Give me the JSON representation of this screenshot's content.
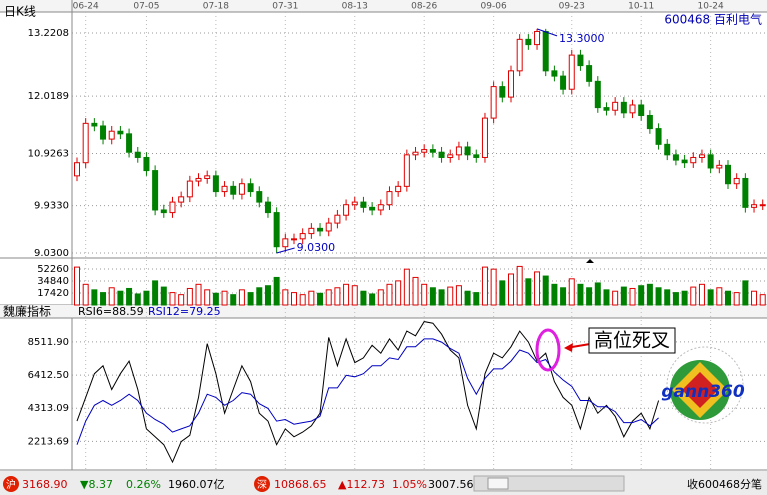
{
  "chart_data": {
    "type": "candlestick",
    "title": "日K线",
    "stock": "600468 百利电气",
    "xticks": [
      {
        "value": 1,
        "label": "06-24"
      },
      {
        "value": 8,
        "label": "07-05"
      },
      {
        "value": 16,
        "label": "07-18"
      },
      {
        "value": 24,
        "label": "07-31"
      },
      {
        "value": 32,
        "label": "08-13"
      },
      {
        "value": 40,
        "label": "08-26"
      },
      {
        "value": 48,
        "label": "09-06"
      },
      {
        "value": 57,
        "label": "09-23"
      },
      {
        "value": 65,
        "label": "10-11"
      },
      {
        "value": 73,
        "label": "10-24"
      }
    ],
    "up_color": "#e00000",
    "down_color": "#008000",
    "price": {
      "ylim": [
        8.935,
        13.621
      ],
      "yticks": [
        13.2208,
        12.0189,
        10.9263,
        {
          "value": 9.933,
          "label": "9.9330"
        },
        {
          "value": 9.03,
          "label": "9.0300"
        }
      ],
      "open": [
        10.5,
        10.75,
        11.5,
        11.45,
        11.2,
        11.35,
        11.3,
        10.95,
        10.85,
        10.6,
        9.85,
        9.8,
        10.0,
        10.1,
        10.4,
        10.45,
        10.5,
        10.2,
        10.3,
        10.15,
        10.35,
        10.2,
        10.0,
        9.8,
        9.15,
        9.3,
        9.3,
        9.4,
        9.5,
        9.45,
        9.6,
        9.75,
        9.95,
        10.0,
        9.9,
        9.85,
        9.95,
        10.2,
        10.3,
        10.9,
        10.95,
        11.0,
        10.95,
        10.85,
        10.9,
        11.05,
        10.9,
        10.85,
        11.6,
        12.2,
        12.0,
        12.5,
        13.1,
        13.0,
        13.25,
        12.5,
        12.4,
        12.15,
        12.8,
        12.6,
        12.3,
        11.8,
        11.75,
        11.9,
        11.7,
        11.85,
        11.65,
        11.4,
        11.1,
        10.9,
        10.8,
        10.75,
        10.85,
        10.9,
        10.65,
        10.7,
        10.35,
        10.45,
        9.9,
        9.95
      ],
      "high": [
        10.85,
        11.6,
        11.6,
        11.55,
        11.45,
        11.45,
        11.4,
        11.05,
        10.95,
        10.7,
        9.95,
        10.1,
        10.2,
        10.5,
        10.55,
        10.6,
        10.6,
        10.4,
        10.4,
        10.45,
        10.45,
        10.3,
        10.1,
        9.9,
        9.4,
        9.4,
        9.5,
        9.6,
        9.6,
        9.7,
        9.85,
        10.05,
        10.1,
        10.1,
        10.0,
        10.05,
        10.3,
        10.4,
        11.0,
        11.05,
        11.1,
        11.1,
        11.05,
        11.0,
        11.15,
        11.15,
        11.0,
        11.7,
        12.3,
        12.3,
        12.6,
        13.2,
        13.2,
        13.3,
        13.3,
        12.6,
        12.5,
        12.9,
        12.9,
        12.7,
        12.4,
        11.9,
        12.0,
        12.0,
        11.95,
        11.95,
        11.75,
        11.5,
        11.2,
        11.0,
        10.9,
        10.95,
        11.0,
        11.0,
        10.8,
        10.8,
        10.55,
        10.55,
        10.05,
        10.05
      ],
      "low": [
        10.4,
        10.65,
        11.35,
        11.1,
        11.1,
        11.2,
        10.85,
        10.75,
        10.5,
        9.75,
        9.7,
        9.7,
        9.9,
        10.0,
        10.3,
        10.35,
        10.1,
        10.1,
        10.05,
        10.05,
        10.1,
        9.9,
        9.7,
        9.03,
        9.05,
        9.2,
        9.2,
        9.3,
        9.35,
        9.35,
        9.5,
        9.65,
        9.85,
        9.8,
        9.75,
        9.75,
        9.85,
        10.1,
        10.2,
        10.8,
        10.85,
        10.85,
        10.75,
        10.75,
        10.8,
        10.8,
        10.75,
        10.75,
        11.5,
        11.9,
        11.9,
        12.4,
        12.9,
        12.9,
        12.4,
        12.3,
        12.05,
        12.05,
        12.5,
        12.2,
        11.7,
        11.65,
        11.65,
        11.6,
        11.6,
        11.55,
        11.3,
        11.0,
        10.8,
        10.7,
        10.65,
        10.65,
        10.75,
        10.55,
        10.55,
        10.25,
        10.25,
        9.8,
        9.8,
        9.85
      ],
      "close": [
        10.75,
        11.5,
        11.45,
        11.2,
        11.35,
        11.3,
        10.95,
        10.85,
        10.6,
        9.85,
        9.8,
        10.0,
        10.1,
        10.4,
        10.45,
        10.5,
        10.2,
        10.3,
        10.15,
        10.35,
        10.2,
        10.0,
        9.8,
        9.15,
        9.3,
        9.3,
        9.4,
        9.5,
        9.45,
        9.6,
        9.75,
        9.95,
        10.0,
        9.9,
        9.85,
        9.95,
        10.2,
        10.3,
        10.9,
        10.95,
        11.0,
        10.95,
        10.85,
        10.9,
        11.05,
        10.9,
        10.85,
        11.6,
        12.2,
        12.0,
        12.5,
        13.1,
        13.0,
        13.25,
        12.5,
        12.4,
        12.15,
        12.8,
        12.6,
        12.3,
        11.8,
        11.75,
        11.9,
        11.7,
        11.85,
        11.65,
        11.4,
        11.1,
        10.9,
        10.8,
        10.75,
        10.85,
        10.9,
        10.65,
        10.7,
        10.35,
        10.45,
        9.9,
        9.95,
        9.95
      ],
      "high_label": {
        "index": 53,
        "label": "13.3000"
      },
      "low_label": {
        "index": 23,
        "label": "9.0300"
      }
    },
    "volume": {
      "ylim": [
        0,
        62400
      ],
      "yticks": [
        52260,
        34840,
        17420
      ],
      "values": [
        55000,
        30000,
        22000,
        18000,
        25000,
        20000,
        24000,
        16000,
        20000,
        35000,
        26000,
        18000,
        15000,
        24000,
        30000,
        22000,
        17000,
        20000,
        15000,
        22000,
        18000,
        25000,
        28000,
        40000,
        22000,
        18000,
        15000,
        20000,
        17000,
        22000,
        25000,
        30000,
        28000,
        20000,
        16000,
        22000,
        30000,
        35000,
        52000,
        40000,
        30000,
        25000,
        22000,
        26000,
        28000,
        20000,
        18000,
        55000,
        52000,
        35000,
        45000,
        56000,
        38000,
        48000,
        42000,
        30000,
        25000,
        38000,
        30000,
        25000,
        32000,
        22000,
        20000,
        26000,
        24000,
        28000,
        30000,
        25000,
        22000,
        18000,
        20000,
        26000,
        30000,
        22000,
        25000,
        20000,
        18000,
        35000,
        20000,
        15000
      ]
    },
    "indicator": {
      "title": "魏廉指标",
      "ylim": [
        400,
        9900
      ],
      "yticks": [
        {
          "value": 8511.9,
          "label": "8511.90"
        },
        {
          "value": 6412.5,
          "label": "6412.50"
        },
        4313.09,
        2213.69
      ],
      "series": [
        {
          "name": "RSI6=88.59",
          "color": "#000000",
          "values": [
            3500,
            5000,
            6500,
            7000,
            5500,
            6500,
            7300,
            5500,
            3000,
            2500,
            2000,
            900,
            2200,
            2600,
            5000,
            8400,
            6500,
            4000,
            5500,
            7000,
            6000,
            4000,
            3500,
            2000,
            3000,
            2500,
            2800,
            3200,
            4000,
            8800,
            7000,
            8700,
            7200,
            7500,
            8300,
            7800,
            8700,
            8000,
            9200,
            8900,
            9800,
            9700,
            9000,
            8000,
            7500,
            4500,
            3000,
            6500,
            7800,
            7500,
            8200,
            9200,
            8500,
            7300,
            7800,
            6000,
            5000,
            4500,
            3000,
            5000,
            4000,
            4500,
            3800,
            2500,
            3500,
            4000,
            3000,
            4800,
            null,
            null,
            null,
            null,
            null,
            null,
            null,
            null,
            null,
            null,
            null,
            null
          ]
        },
        {
          "name": "RSI12=79.25",
          "color": "#0000c0",
          "values": [
            2000,
            3500,
            4500,
            4800,
            4500,
            4800,
            5200,
            4800,
            4000,
            3600,
            3300,
            2800,
            3000,
            3200,
            4000,
            5200,
            5000,
            4500,
            4800,
            5300,
            5200,
            4600,
            4300,
            3500,
            3600,
            3300,
            3400,
            3500,
            3800,
            5600,
            5600,
            6400,
            6300,
            6500,
            7000,
            7000,
            7500,
            7400,
            8200,
            8200,
            8700,
            8700,
            8500,
            8100,
            7800,
            6200,
            5200,
            6200,
            6800,
            6800,
            7300,
            8000,
            7800,
            7200,
            7400,
            6600,
            6100,
            5700,
            4800,
            4800,
            4400,
            4400,
            4100,
            3400,
            3400,
            3600,
            3200,
            3700,
            null,
            null,
            null,
            null,
            null,
            null,
            null,
            null,
            null,
            null,
            null,
            null
          ]
        }
      ],
      "annotation": "高位死叉"
    },
    "logo": "gann360",
    "status_bar": {
      "sh_badge": "沪",
      "sh_index": "3168.90",
      "sh_change": "▼8.37",
      "sh_pct": "0.26%",
      "sh_amount": "1960.07亿",
      "sz_badge": "深",
      "sz_index": "10868.65",
      "sz_change": "▲112.73",
      "sz_pct": "1.05%",
      "sz_amount": "3007.56",
      "right": "收600468分笔"
    }
  }
}
